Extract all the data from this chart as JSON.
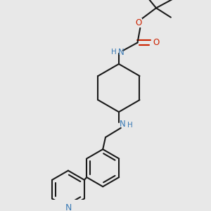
{
  "bg_color": "#e8e8e8",
  "bond_color": "#1a1a1a",
  "nitrogen_color": "#3a7ab5",
  "oxygen_color": "#cc2200",
  "line_width": 1.5,
  "figsize": [
    3.0,
    3.0
  ],
  "dpi": 100,
  "xlim": [
    0,
    300
  ],
  "ylim": [
    0,
    300
  ]
}
